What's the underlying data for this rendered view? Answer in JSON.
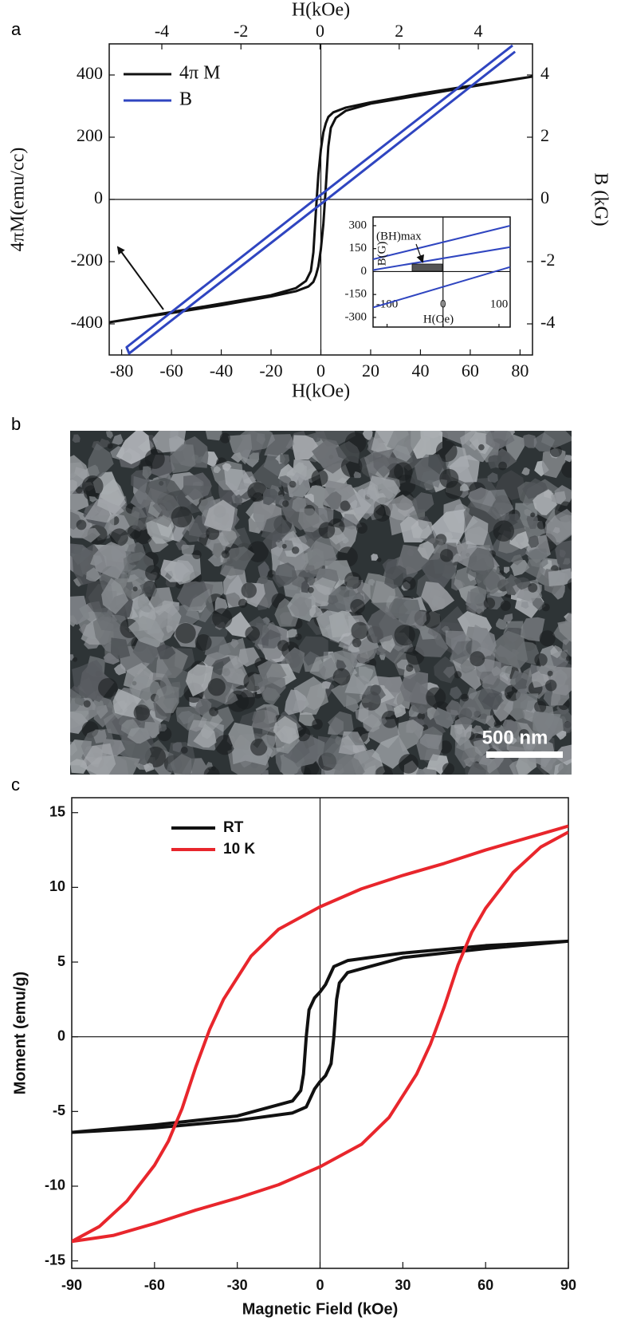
{
  "chart_data": [
    {
      "type": "line",
      "panel_label": "a",
      "x_label": "H(kOe)",
      "x2_label": "H(kOe)",
      "y_label": "4πM(emu/cc)",
      "y2_label": "B (kG)",
      "xlim": [
        -85,
        85
      ],
      "xticks": [
        -80,
        -60,
        -40,
        -20,
        0,
        20,
        40,
        60,
        80
      ],
      "x2lim": [
        -5.33,
        5.37
      ],
      "x2ticks": [
        -4,
        -2,
        0,
        2,
        4
      ],
      "ylim": [
        -500,
        500
      ],
      "yticks": [
        -400,
        -200,
        0,
        200,
        400
      ],
      "y2lim": [
        -5,
        5
      ],
      "y2ticks": [
        -4,
        -2,
        0,
        2,
        4
      ],
      "zero_lines": true,
      "legend": "upper left",
      "series": [
        {
          "name": "4π M",
          "color": "#111111",
          "x": [
            85,
            60,
            40,
            20,
            10,
            5,
            3,
            2,
            1,
            0,
            -1,
            -2,
            -3,
            -4,
            -6,
            -10,
            -20,
            -40,
            -60,
            -85,
            -60,
            -40,
            -20,
            -10,
            -5,
            -3,
            -2,
            -1,
            0,
            1,
            2,
            3,
            4,
            6,
            10,
            20,
            40,
            60,
            85
          ],
          "values": [
            395,
            365,
            340,
            312,
            295,
            280,
            265,
            245,
            215,
            160,
            80,
            -40,
            -170,
            -230,
            -262,
            -285,
            -308,
            -335,
            -362,
            -395,
            -365,
            -340,
            -312,
            -295,
            -280,
            -265,
            -245,
            -215,
            -160,
            -80,
            40,
            170,
            230,
            262,
            285,
            308,
            335,
            362,
            395
          ]
        },
        {
          "name": "B",
          "color": "#2f45c0",
          "axis": "y2",
          "x": [
            77,
            0,
            -78,
            -77,
            0,
            78
          ],
          "values": [
            4.95,
            0.15,
            -4.75,
            -4.95,
            -0.15,
            4.75
          ]
        }
      ]
    },
    {
      "type": "line",
      "x_label": "H(Oe)",
      "y_label": "B(G)",
      "annotation": "(BH)max",
      "xlim": [
        -125,
        120
      ],
      "xticks": [
        -100,
        0,
        100
      ],
      "ylim": [
        -363,
        357
      ],
      "yticks": [
        -300,
        -150,
        0,
        150,
        300
      ],
      "zero_lines": true,
      "series": [
        {
          "color": "#2f45c0",
          "x": [
            -125,
            120
          ],
          "values": [
            80,
            300
          ]
        },
        {
          "color": "#2f45c0",
          "x": [
            -125,
            120
          ],
          "values": [
            10,
            160
          ]
        },
        {
          "color": "#2f45c0",
          "x": [
            -125,
            120
          ],
          "values": [
            -235,
            30
          ]
        }
      ]
    },
    {
      "type": "image",
      "panel_label": "b",
      "scale_bar_label": "500 nm"
    },
    {
      "type": "line",
      "panel_label": "c",
      "x_label": "Magnetic Field (kOe)",
      "y_label": "Moment (emu/g)",
      "xlim": [
        -90,
        90
      ],
      "xticks": [
        -90,
        -60,
        -30,
        0,
        30,
        60,
        90
      ],
      "ylim": [
        -15.5,
        16
      ],
      "yticks": [
        -15,
        -10,
        -5,
        0,
        5,
        10,
        15
      ],
      "zero_lines": true,
      "legend": "upper left",
      "series": [
        {
          "name": "RT",
          "color": "#111111",
          "x": [
            90,
            60,
            30,
            10,
            5,
            2,
            0,
            -2,
            -4,
            -5,
            -6,
            -7,
            -10,
            -30,
            -60,
            -90,
            -60,
            -30,
            -10,
            -5,
            -2,
            0,
            2,
            4,
            5,
            6,
            7,
            10,
            30,
            60,
            90
          ],
          "values": [
            6.4,
            6.1,
            5.6,
            5.1,
            4.7,
            3.5,
            3.0,
            2.6,
            1.8,
            0,
            -2.5,
            -3.6,
            -4.3,
            -5.3,
            -5.9,
            -6.4,
            -6.1,
            -5.6,
            -5.1,
            -4.7,
            -3.5,
            -3.0,
            -2.6,
            -1.8,
            0,
            2.5,
            3.6,
            4.3,
            5.3,
            5.9,
            6.4
          ]
        },
        {
          "name": "10 K",
          "color": "#e8262c",
          "x": [
            90,
            75,
            60,
            45,
            30,
            15,
            0,
            -15,
            -25,
            -35,
            -40,
            -45,
            -50,
            -55,
            -60,
            -70,
            -80,
            -90,
            -75,
            -60,
            -45,
            -30,
            -15,
            0,
            15,
            25,
            35,
            40,
            45,
            50,
            55,
            60,
            70,
            80,
            90
          ],
          "values": [
            14.1,
            13.3,
            12.5,
            11.6,
            10.8,
            9.9,
            8.7,
            7.2,
            5.4,
            2.5,
            0.5,
            -2,
            -4.8,
            -7.0,
            -8.6,
            -11.0,
            -12.7,
            -13.7,
            -13.3,
            -12.5,
            -11.6,
            -10.8,
            -9.9,
            -8.7,
            -7.2,
            -5.4,
            -2.5,
            -0.5,
            2,
            4.8,
            7.0,
            8.6,
            11.0,
            12.7,
            13.7
          ]
        }
      ]
    }
  ]
}
